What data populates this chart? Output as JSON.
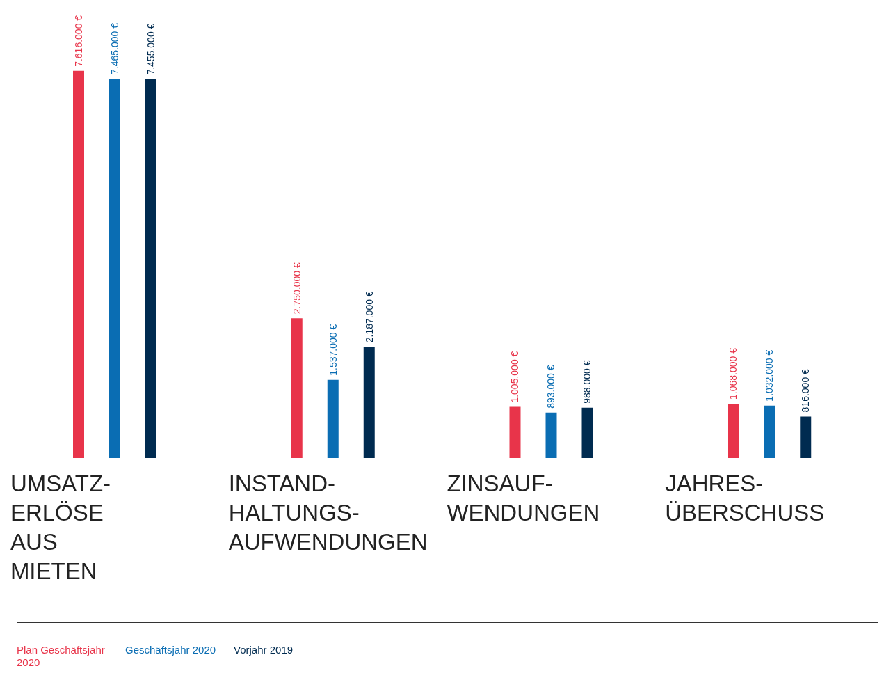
{
  "chart_data": {
    "type": "bar",
    "categories": [
      "UMSATZ-\nERLÖSE\nAUS\nMIETEN",
      "INSTAND-\nHALTUNGS-\nAUFWENDUNGEN",
      "ZINSAUF-\nWENDUNGEN",
      "JAHRES-\nÜBERSCHUSS"
    ],
    "series": [
      {
        "name": "Plan Geschäftsjahr 2020",
        "color": "#e8344a",
        "values": [
          7616000,
          2750000,
          1005000,
          1068000
        ],
        "value_labels": [
          "7.616.000 €",
          "2.750.000 €",
          "1.005.000 €",
          "1.068.000 €"
        ]
      },
      {
        "name": "Geschäftsjahr 2020",
        "color": "#0a6db3",
        "values": [
          7465000,
          1537000,
          893000,
          1032000
        ],
        "value_labels": [
          "7.465.000 €",
          "1.537.000 €",
          "893.000 €",
          "1.032.000 €"
        ]
      },
      {
        "name": "Vorjahr 2019",
        "color": "#002b50",
        "values": [
          7455000,
          2187000,
          988000,
          816000
        ],
        "value_labels": [
          "7.455.000 €",
          "2.187.000 €",
          "988.000 €",
          "816.000 €"
        ]
      }
    ],
    "legend": "bottom",
    "grid": false
  }
}
